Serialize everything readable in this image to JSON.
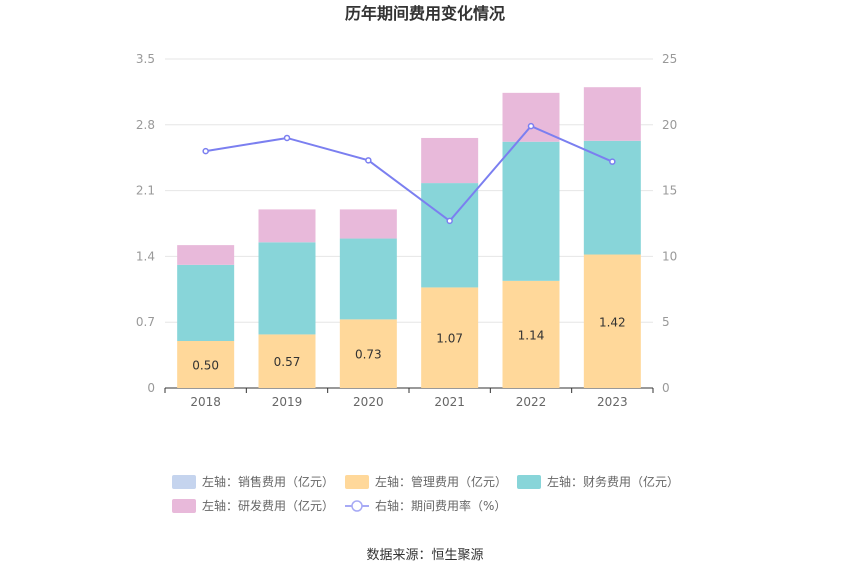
{
  "chart_data": {
    "type": "bar",
    "title": "历年期间费用变化情况",
    "categories": [
      "2018",
      "2019",
      "2020",
      "2021",
      "2022",
      "2023"
    ],
    "left_axis": {
      "ylim": [
        0,
        3.5
      ],
      "ticks": [
        "0",
        "0.7",
        "1.4",
        "2.1",
        "2.8",
        "3.5"
      ]
    },
    "right_axis": {
      "ylim": [
        0,
        25
      ],
      "ticks": [
        "0",
        "5",
        "10",
        "15",
        "20",
        "25"
      ]
    },
    "grid": true,
    "legend_position": "bottom",
    "series": [
      {
        "name": "左轴：销售费用（亿元）",
        "axis": "left",
        "type": "bar",
        "color": "#c5d4ee",
        "values": [
          0,
          0,
          0,
          0,
          0,
          0
        ]
      },
      {
        "name": "左轴：管理费用（亿元）",
        "axis": "left",
        "type": "bar",
        "color": "#ffd89a",
        "values": [
          0.5,
          0.57,
          0.73,
          1.07,
          1.14,
          1.42
        ],
        "labels": [
          "0.50",
          "0.57",
          "0.73",
          "1.07",
          "1.14",
          "1.42"
        ]
      },
      {
        "name": "左轴：财务费用（亿元）",
        "axis": "left",
        "type": "bar",
        "color": "#88d5d9",
        "values": [
          0.81,
          0.98,
          0.86,
          1.11,
          1.48,
          1.21
        ]
      },
      {
        "name": "左轴：研发费用（亿元）",
        "axis": "left",
        "type": "bar",
        "color": "#e8b9da",
        "values": [
          0.21,
          0.35,
          0.31,
          0.48,
          0.52,
          0.57
        ]
      },
      {
        "name": "右轴：期间费用率（%）",
        "axis": "right",
        "type": "line",
        "color": "#7b7ff0",
        "values": [
          18.0,
          19.0,
          17.3,
          12.7,
          19.9,
          17.2
        ]
      }
    ]
  },
  "source": "数据来源：恒生聚源"
}
